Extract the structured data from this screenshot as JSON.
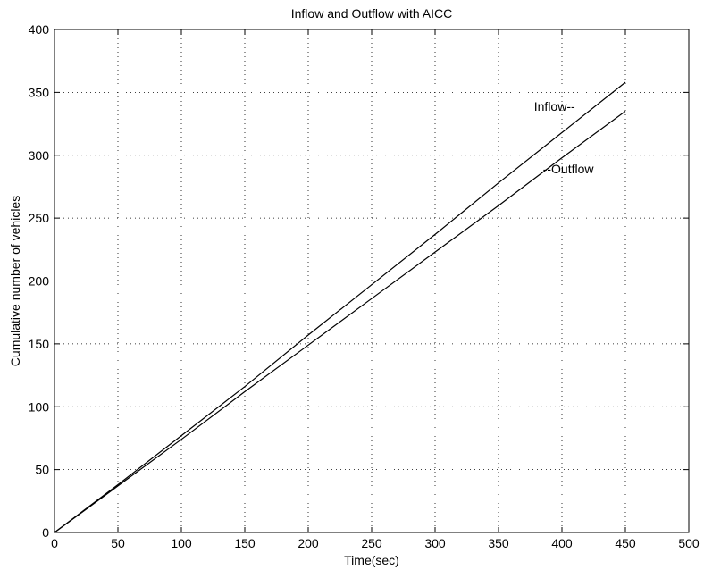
{
  "chart_data": {
    "type": "line",
    "title": "Inflow and Outflow with AICC",
    "xlabel": "Time(sec)",
    "ylabel": "Cumulative number of vehicles",
    "xlim": [
      0,
      500
    ],
    "ylim": [
      0,
      400
    ],
    "xticks": [
      0,
      50,
      100,
      150,
      200,
      250,
      300,
      350,
      400,
      450,
      500
    ],
    "yticks": [
      0,
      50,
      100,
      150,
      200,
      250,
      300,
      350,
      400
    ],
    "grid": true,
    "series": [
      {
        "name": "Inflow",
        "x": [
          0,
          50,
          100,
          150,
          200,
          250,
          300,
          350,
          400,
          450
        ],
        "y": [
          0,
          38,
          77,
          116,
          157,
          197,
          237,
          278,
          318,
          358
        ]
      },
      {
        "name": "Outflow",
        "x": [
          0,
          50,
          100,
          150,
          200,
          250,
          300,
          350,
          400,
          450
        ],
        "y": [
          0,
          37,
          74,
          112,
          149,
          186,
          223,
          260,
          298,
          335
        ]
      }
    ],
    "annotations": [
      {
        "text": "Inflow--",
        "x": 378,
        "y": 339
      },
      {
        "text": "--Outflow",
        "x": 385,
        "y": 289
      }
    ]
  }
}
